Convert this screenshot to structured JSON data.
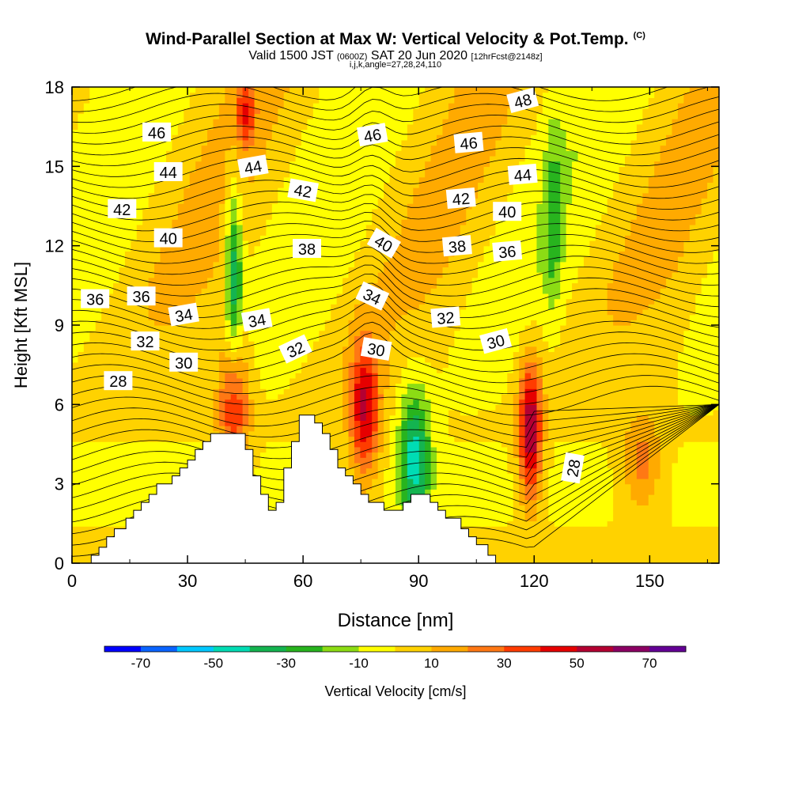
{
  "header": {
    "title": "Wind-Parallel Section at Max W: Vertical Velocity & Pot.Temp.",
    "copyright": "(C)",
    "valid_main": "Valid 1500 JST",
    "valid_utc": "(0600Z)",
    "valid_date": "SAT 20 Jun 2020",
    "forecast": "[12hrFcst@2148z]",
    "indices": "i,j,k,angle=27,28,24,110"
  },
  "chart_data": {
    "type": "heatmap",
    "xlabel": "Distance [nm]",
    "ylabel": "Height [Kft MSL]",
    "xlim": [
      0,
      168
    ],
    "ylim": [
      0,
      18
    ],
    "x_ticks": [
      "0",
      "30",
      "60",
      "90",
      "120",
      "150"
    ],
    "y_ticks": [
      "0",
      "3",
      "6",
      "9",
      "12",
      "15",
      "18"
    ],
    "x_tick_values": [
      0,
      30,
      60,
      90,
      120,
      150
    ],
    "y_tick_values": [
      0,
      3,
      6,
      9,
      12,
      15,
      18
    ],
    "colorbar": {
      "label": "Vertical Velocity [cm/s]",
      "min": -80,
      "max": 80,
      "tick_labels": [
        "-70",
        "-50",
        "-30",
        "-10",
        "10",
        "30",
        "50",
        "70"
      ],
      "tick_values": [
        -70,
        -50,
        -30,
        -10,
        10,
        30,
        50,
        70
      ],
      "colors": [
        "#0000ff",
        "#0a64ff",
        "#00c8ff",
        "#00dcb4",
        "#14b450",
        "#28b41e",
        "#8cdc14",
        "#ffff00",
        "#ffd200",
        "#ffaa00",
        "#ff7814",
        "#ff3c00",
        "#e60000",
        "#b40032",
        "#8c0064",
        "#640096"
      ]
    },
    "contour_field": "Potential temperature (C)",
    "contour_labels": [
      {
        "text": "46",
        "x": 22,
        "y": 16.3,
        "rot": 0
      },
      {
        "text": "44",
        "x": 25,
        "y": 14.8,
        "rot": 0
      },
      {
        "text": "42",
        "x": 13,
        "y": 13.4,
        "rot": 0
      },
      {
        "text": "40",
        "x": 25,
        "y": 12.3,
        "rot": 0
      },
      {
        "text": "36",
        "x": 6,
        "y": 10.0,
        "rot": 0
      },
      {
        "text": "36",
        "x": 18,
        "y": 10.1,
        "rot": 0
      },
      {
        "text": "34",
        "x": 29,
        "y": 9.4,
        "rot": -10
      },
      {
        "text": "32",
        "x": 19,
        "y": 8.4,
        "rot": 0
      },
      {
        "text": "30",
        "x": 29,
        "y": 7.6,
        "rot": 0
      },
      {
        "text": "28",
        "x": 12,
        "y": 6.9,
        "rot": 0
      },
      {
        "text": "44",
        "x": 47,
        "y": 15.0,
        "rot": -10
      },
      {
        "text": "34",
        "x": 48,
        "y": 9.2,
        "rot": -10
      },
      {
        "text": "42",
        "x": 60,
        "y": 14.1,
        "rot": 10
      },
      {
        "text": "38",
        "x": 61,
        "y": 11.9,
        "rot": 0
      },
      {
        "text": "32",
        "x": 58,
        "y": 8.1,
        "rot": -25
      },
      {
        "text": "46",
        "x": 78,
        "y": 16.2,
        "rot": -10
      },
      {
        "text": "40",
        "x": 81,
        "y": 12.1,
        "rot": 30
      },
      {
        "text": "34",
        "x": 78,
        "y": 10.1,
        "rot": 25
      },
      {
        "text": "30",
        "x": 79,
        "y": 8.1,
        "rot": 10
      },
      {
        "text": "46",
        "x": 103,
        "y": 15.9,
        "rot": -5
      },
      {
        "text": "42",
        "x": 101,
        "y": 13.8,
        "rot": -5
      },
      {
        "text": "38",
        "x": 100,
        "y": 12.0,
        "rot": -5
      },
      {
        "text": "32",
        "x": 97,
        "y": 9.3,
        "rot": -5
      },
      {
        "text": "48",
        "x": 117,
        "y": 17.5,
        "rot": -15
      },
      {
        "text": "44",
        "x": 117,
        "y": 14.7,
        "rot": -5
      },
      {
        "text": "40",
        "x": 113,
        "y": 13.3,
        "rot": 0
      },
      {
        "text": "36",
        "x": 113,
        "y": 11.8,
        "rot": -5
      },
      {
        "text": "30",
        "x": 110,
        "y": 8.4,
        "rot": -15
      },
      {
        "text": "28",
        "x": 130,
        "y": 3.6,
        "rot": -80
      }
    ],
    "velocity_features": [
      {
        "kind": "updraft",
        "x": 119,
        "y": 5.0,
        "peak": 60
      },
      {
        "kind": "updraft",
        "x": 76,
        "y": 5.8,
        "peak": 50
      },
      {
        "kind": "updraft",
        "x": 42,
        "y": 6.0,
        "peak": 40
      },
      {
        "kind": "updraft",
        "x": 45,
        "y": 17.0,
        "peak": 30
      },
      {
        "kind": "updraft",
        "x": 148,
        "y": 3.8,
        "peak": 25
      },
      {
        "kind": "downdraft",
        "x": 89,
        "y": 4.0,
        "peak": -45
      },
      {
        "kind": "downdraft",
        "x": 42,
        "y": 11.0,
        "peak": -40
      },
      {
        "kind": "downdraft",
        "x": 125,
        "y": 13.0,
        "peak": -20
      }
    ],
    "terrain": "stepped terrain with peaks near 45 nm and 62 nm"
  }
}
